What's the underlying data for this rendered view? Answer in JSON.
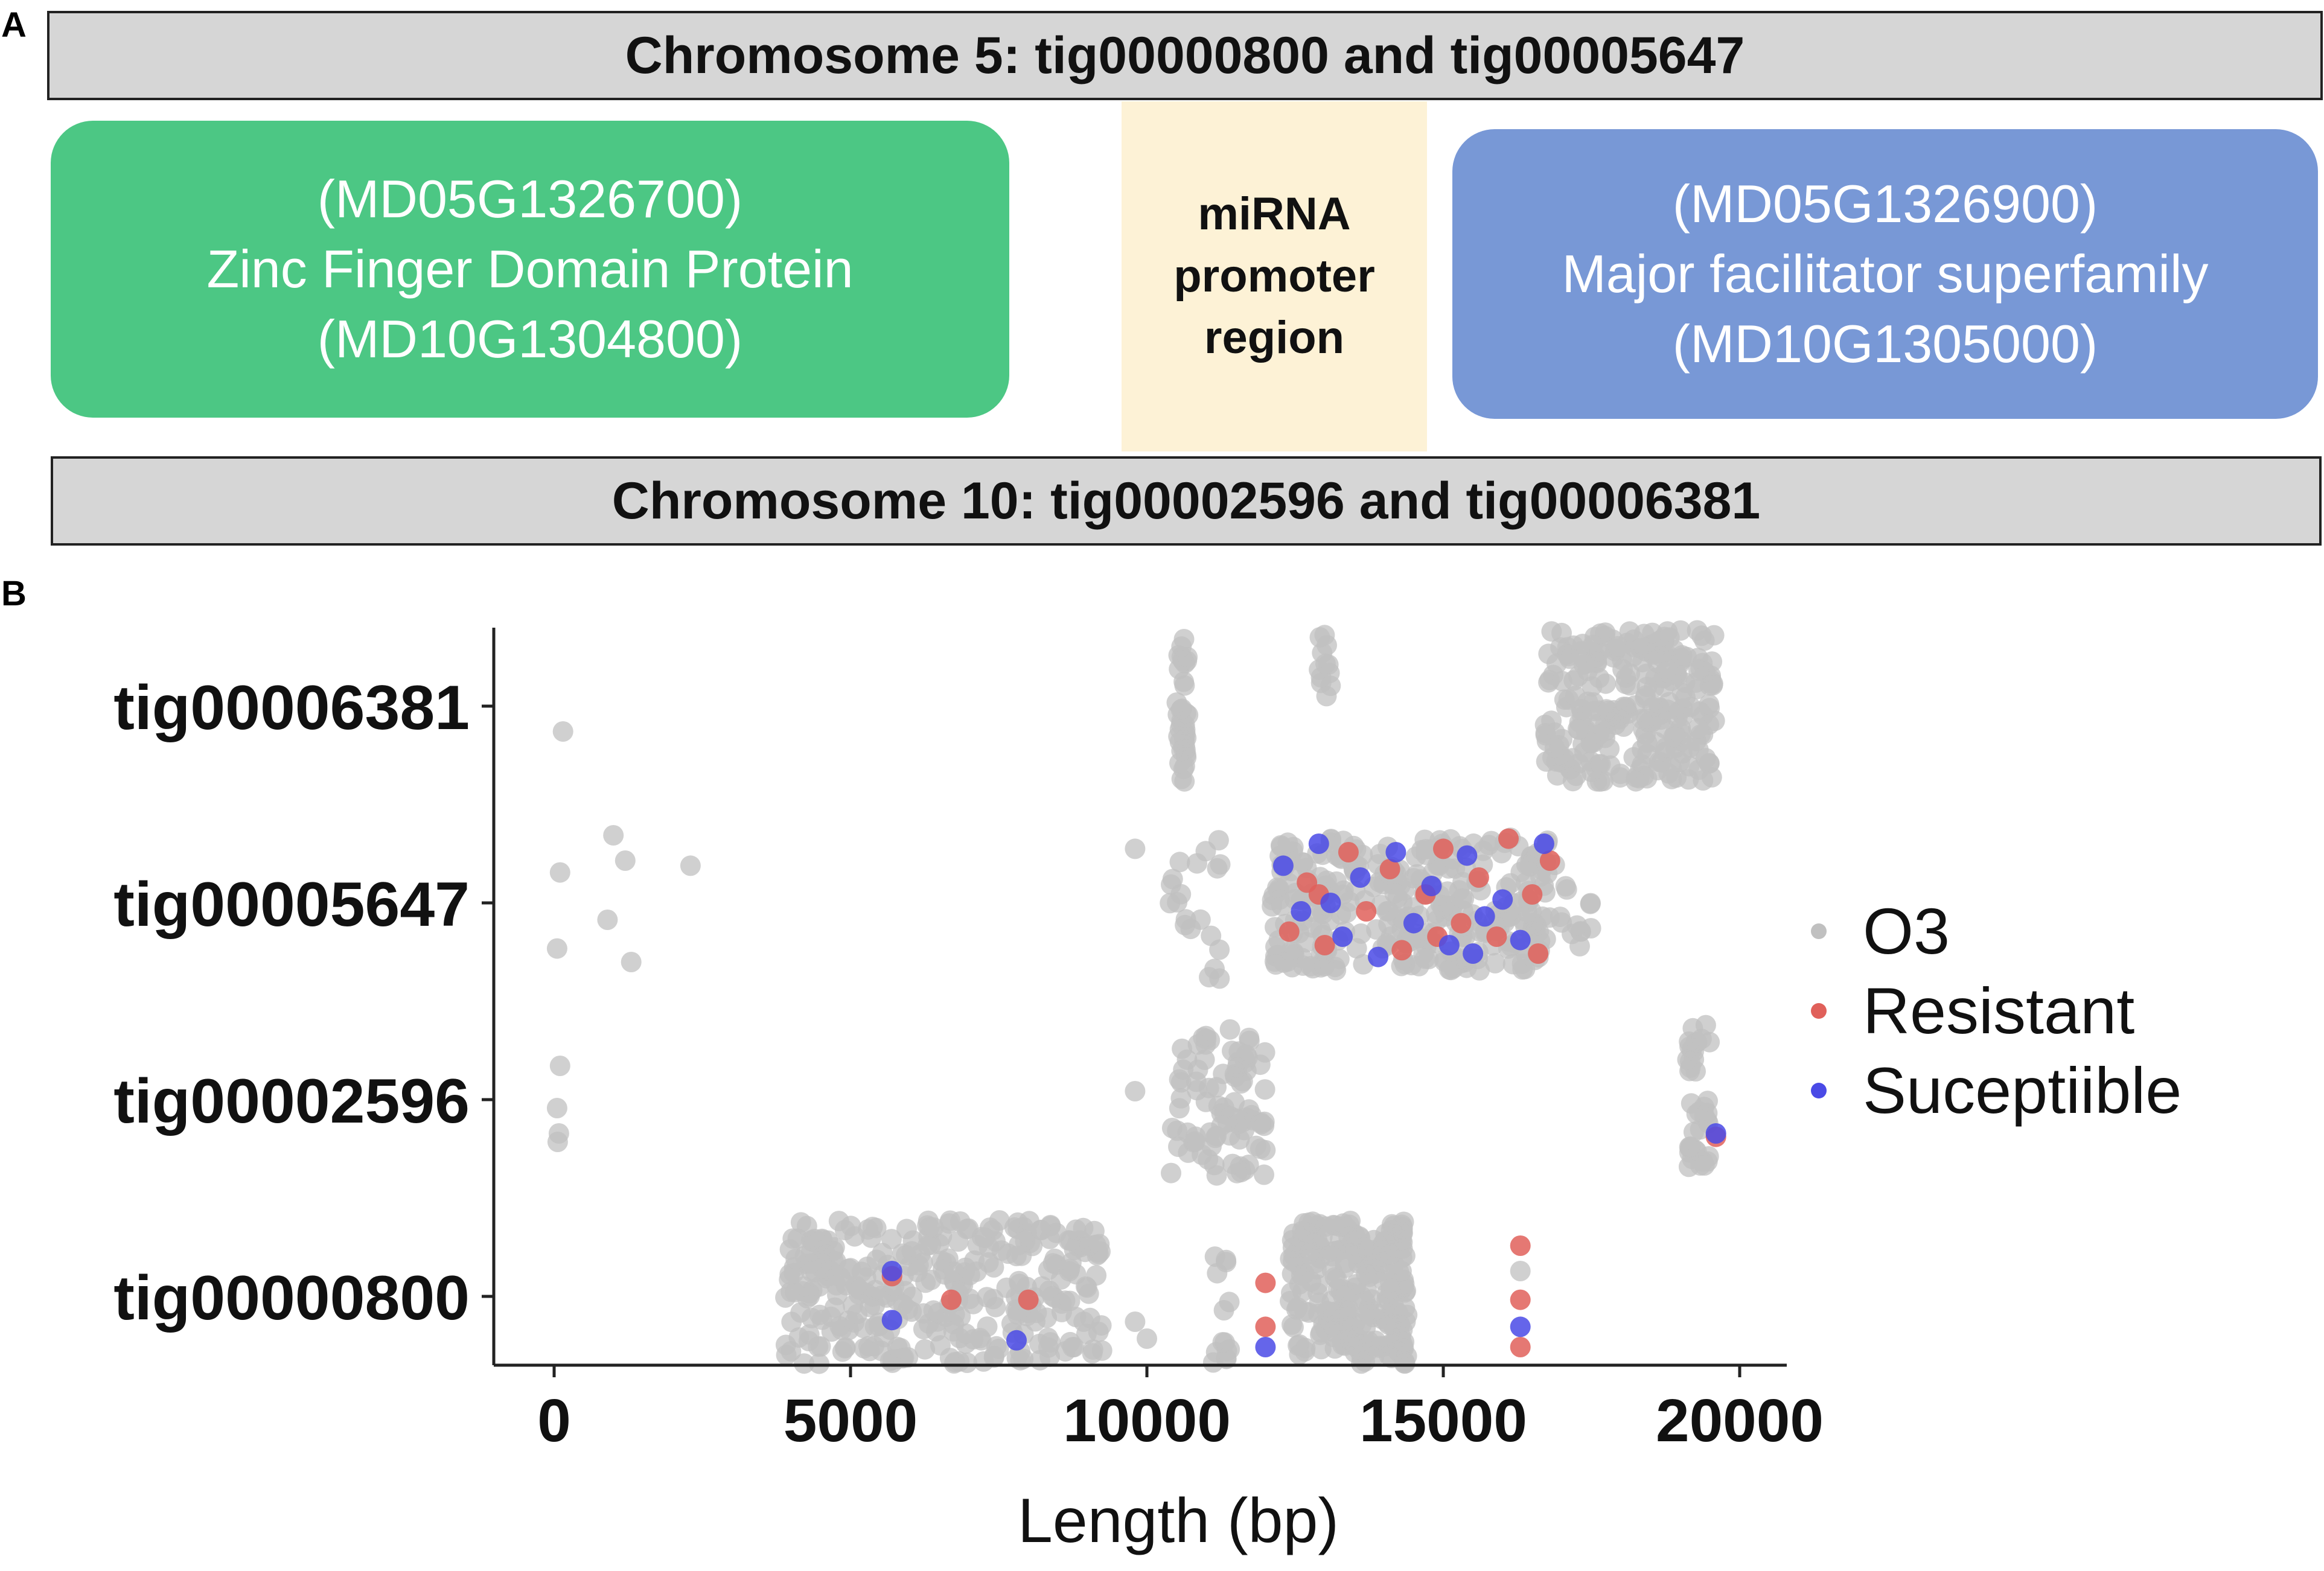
{
  "panel_a": {
    "letter": "A",
    "chromosome_top": "Chromosome 5: tig00000800 and tig00005647",
    "chromosome_bottom": "Chromosome 10: tig00002596 and tig00006381",
    "gene_left": {
      "line1": "(MD05G1326700)",
      "line2": "Zinc Finger Domain Protein",
      "line3": "(MD10G1304800)",
      "color": "#4cc784"
    },
    "promoter": {
      "line1": "miRNA",
      "line2": "promoter",
      "line3": "region",
      "color": "#fdf2d6"
    },
    "gene_right": {
      "line1": "(MD05G1326900)",
      "line2": "Major facilitator superfamily",
      "line3": "(MD10G1305000)",
      "color": "#7898d6"
    }
  },
  "panel_b": {
    "letter": "B"
  },
  "chart_data": {
    "type": "scatter",
    "title": "",
    "xlabel": "Length (bp)",
    "ylabel": "",
    "xlim": [
      -1000,
      21200
    ],
    "x_ticks": [
      0,
      5000,
      10000,
      15000,
      20000
    ],
    "x_tick_labels": [
      "0",
      "5000",
      "10000",
      "15000",
      "20000"
    ],
    "categories": [
      "tig00000800",
      "tig00002596",
      "tig00005647",
      "tig00006381"
    ],
    "grid": false,
    "legend_position": "right",
    "legend": [
      {
        "name": "O3",
        "color": "#c0c0c0"
      },
      {
        "name": "Resistant",
        "color": "#e0605a"
      },
      {
        "name": "Suceptiible",
        "color": "#4a4ae6"
      }
    ],
    "series": [
      {
        "name": "O3",
        "clusters": [
          {
            "category": "tig00006381",
            "x": [
              10500,
              10700
            ],
            "y": [
              -0.45,
              0.4
            ],
            "count": 40
          },
          {
            "category": "tig00006381",
            "x": [
              12900,
              13100
            ],
            "y": [
              -0.2,
              0.45
            ],
            "count": 12
          },
          {
            "category": "tig00006381",
            "x": [
              16700,
              19600
            ],
            "y": [
              -0.45,
              0.45
            ],
            "count": 260
          },
          {
            "category": "tig00005647",
            "x": [
              10300,
              11300
            ],
            "y": [
              -0.5,
              0.45
            ],
            "count": 20
          },
          {
            "category": "tig00005647",
            "x": [
              12100,
              16900
            ],
            "y": [
              -0.4,
              0.4
            ],
            "count": 320
          },
          {
            "category": "tig00005647",
            "x": [
              16900,
              17500
            ],
            "y": [
              -0.3,
              0.1
            ],
            "count": 12
          },
          {
            "category": "tig00002596",
            "x": [
              10400,
              12000
            ],
            "y": [
              -0.45,
              0.45
            ],
            "count": 90
          },
          {
            "category": "tig00002596",
            "x": [
              19100,
              19500
            ],
            "y": [
              -0.4,
              0.45
            ],
            "count": 40
          },
          {
            "category": "tig00000800",
            "x": [
              3900,
              9300
            ],
            "y": [
              -0.4,
              0.45
            ],
            "count": 330
          },
          {
            "category": "tig00000800",
            "x": [
              11100,
              11400
            ],
            "y": [
              -0.4,
              0.4
            ],
            "count": 14
          },
          {
            "category": "tig00000800",
            "x": [
              12400,
              14400
            ],
            "y": [
              -0.4,
              0.45
            ],
            "count": 240
          }
        ],
        "points": [
          {
            "category": "tig00006381",
            "x": 150,
            "y": -0.15
          },
          {
            "category": "tig00005647",
            "x": 100,
            "y": 0.18
          },
          {
            "category": "tig00005647",
            "x": 50,
            "y": -0.27
          },
          {
            "category": "tig00005647",
            "x": 1000,
            "y": 0.4
          },
          {
            "category": "tig00005647",
            "x": 1200,
            "y": 0.25
          },
          {
            "category": "tig00005647",
            "x": 900,
            "y": -0.1
          },
          {
            "category": "tig00005647",
            "x": 1300,
            "y": -0.35
          },
          {
            "category": "tig00005647",
            "x": 2300,
            "y": 0.22
          },
          {
            "category": "tig00005647",
            "x": 9800,
            "y": 0.32
          },
          {
            "category": "tig00002596",
            "x": 100,
            "y": 0.2
          },
          {
            "category": "tig00002596",
            "x": 50,
            "y": -0.05
          },
          {
            "category": "tig00002596",
            "x": 80,
            "y": -0.2
          },
          {
            "category": "tig00002596",
            "x": 60,
            "y": -0.25
          },
          {
            "category": "tig00002596",
            "x": 9800,
            "y": 0.05
          },
          {
            "category": "tig00000800",
            "x": 9800,
            "y": -0.15
          },
          {
            "category": "tig00000800",
            "x": 10000,
            "y": -0.25
          },
          {
            "category": "tig00000800",
            "x": 16300,
            "y": 0.15
          }
        ]
      },
      {
        "name": "Resistant",
        "points": [
          {
            "category": "tig00000800",
            "x": 5700,
            "y": 0.12
          },
          {
            "category": "tig00000800",
            "x": 6700,
            "y": -0.02
          },
          {
            "category": "tig00000800",
            "x": 8000,
            "y": -0.02
          },
          {
            "category": "tig00000800",
            "x": 12000,
            "y": 0.08
          },
          {
            "category": "tig00000800",
            "x": 12000,
            "y": -0.18
          },
          {
            "category": "tig00000800",
            "x": 16300,
            "y": 0.3
          },
          {
            "category": "tig00000800",
            "x": 16300,
            "y": -0.02
          },
          {
            "category": "tig00000800",
            "x": 16300,
            "y": -0.3
          },
          {
            "category": "tig00002596",
            "x": 19600,
            "y": -0.22
          },
          {
            "category": "tig00005647",
            "x": 12400,
            "y": -0.17
          },
          {
            "category": "tig00005647",
            "x": 12700,
            "y": 0.12
          },
          {
            "category": "tig00005647",
            "x": 13000,
            "y": -0.25
          },
          {
            "category": "tig00005647",
            "x": 13400,
            "y": 0.3
          },
          {
            "category": "tig00005647",
            "x": 13700,
            "y": -0.05
          },
          {
            "category": "tig00005647",
            "x": 14100,
            "y": 0.2
          },
          {
            "category": "tig00005647",
            "x": 14300,
            "y": -0.28
          },
          {
            "category": "tig00005647",
            "x": 14700,
            "y": 0.05
          },
          {
            "category": "tig00005647",
            "x": 15000,
            "y": 0.32
          },
          {
            "category": "tig00005647",
            "x": 15300,
            "y": -0.12
          },
          {
            "category": "tig00005647",
            "x": 15600,
            "y": 0.15
          },
          {
            "category": "tig00005647",
            "x": 15900,
            "y": -0.2
          },
          {
            "category": "tig00005647",
            "x": 16100,
            "y": 0.38
          },
          {
            "category": "tig00005647",
            "x": 16500,
            "y": 0.05
          },
          {
            "category": "tig00005647",
            "x": 16600,
            "y": -0.3
          },
          {
            "category": "tig00005647",
            "x": 12900,
            "y": 0.05
          },
          {
            "category": "tig00005647",
            "x": 14900,
            "y": -0.2
          },
          {
            "category": "tig00005647",
            "x": 16800,
            "y": 0.25
          }
        ]
      },
      {
        "name": "Suceptiible",
        "points": [
          {
            "category": "tig00000800",
            "x": 5700,
            "y": 0.15
          },
          {
            "category": "tig00000800",
            "x": 5700,
            "y": -0.14
          },
          {
            "category": "tig00000800",
            "x": 7800,
            "y": -0.26
          },
          {
            "category": "tig00000800",
            "x": 12000,
            "y": -0.3
          },
          {
            "category": "tig00000800",
            "x": 16300,
            "y": -0.18
          },
          {
            "category": "tig00002596",
            "x": 19600,
            "y": -0.2
          },
          {
            "category": "tig00005647",
            "x": 12300,
            "y": 0.22
          },
          {
            "category": "tig00005647",
            "x": 12600,
            "y": -0.05
          },
          {
            "category": "tig00005647",
            "x": 12900,
            "y": 0.35
          },
          {
            "category": "tig00005647",
            "x": 13300,
            "y": -0.2
          },
          {
            "category": "tig00005647",
            "x": 13600,
            "y": 0.15
          },
          {
            "category": "tig00005647",
            "x": 13900,
            "y": -0.32
          },
          {
            "category": "tig00005647",
            "x": 14200,
            "y": 0.3
          },
          {
            "category": "tig00005647",
            "x": 14500,
            "y": -0.12
          },
          {
            "category": "tig00005647",
            "x": 14800,
            "y": 0.1
          },
          {
            "category": "tig00005647",
            "x": 15100,
            "y": -0.25
          },
          {
            "category": "tig00005647",
            "x": 15400,
            "y": 0.28
          },
          {
            "category": "tig00005647",
            "x": 15700,
            "y": -0.08
          },
          {
            "category": "tig00005647",
            "x": 16000,
            "y": 0.02
          },
          {
            "category": "tig00005647",
            "x": 16300,
            "y": -0.22
          },
          {
            "category": "tig00005647",
            "x": 16700,
            "y": 0.35
          },
          {
            "category": "tig00005647",
            "x": 13100,
            "y": 0.0
          },
          {
            "category": "tig00005647",
            "x": 15500,
            "y": -0.3
          }
        ]
      }
    ]
  }
}
